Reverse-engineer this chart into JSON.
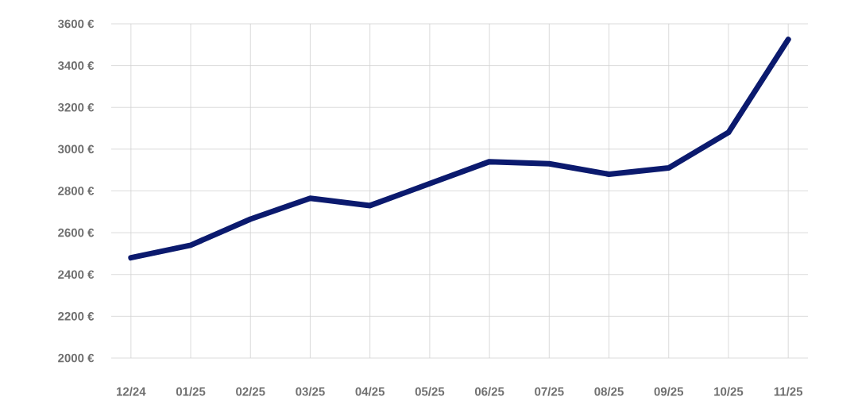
{
  "chart_data": {
    "type": "line",
    "categories": [
      "12/24",
      "01/25",
      "02/25",
      "03/25",
      "04/25",
      "05/25",
      "06/25",
      "07/25",
      "08/25",
      "09/25",
      "10/25",
      "11/25"
    ],
    "series": [
      {
        "color": "#0b1a6e",
        "values": [
          2480,
          2540,
          2665,
          2765,
          2730,
          2835,
          2940,
          2930,
          2880,
          2910,
          3080,
          3525
        ]
      }
    ],
    "ylim": [
      2000,
      3600
    ],
    "yticks": [
      {
        "value": 2000,
        "label": "2000 €"
      },
      {
        "value": 2200,
        "label": "2200 €"
      },
      {
        "value": 2400,
        "label": "2400 €"
      },
      {
        "value": 2600,
        "label": "2600 €"
      },
      {
        "value": 2800,
        "label": "2800 €"
      },
      {
        "value": 3000,
        "label": "3000 €"
      },
      {
        "value": 3200,
        "label": "3200 €"
      },
      {
        "value": 3400,
        "label": "3400 €"
      },
      {
        "value": 3600,
        "label": "3600 €"
      }
    ],
    "grid": true,
    "marker": "none",
    "line_style": "solid"
  }
}
